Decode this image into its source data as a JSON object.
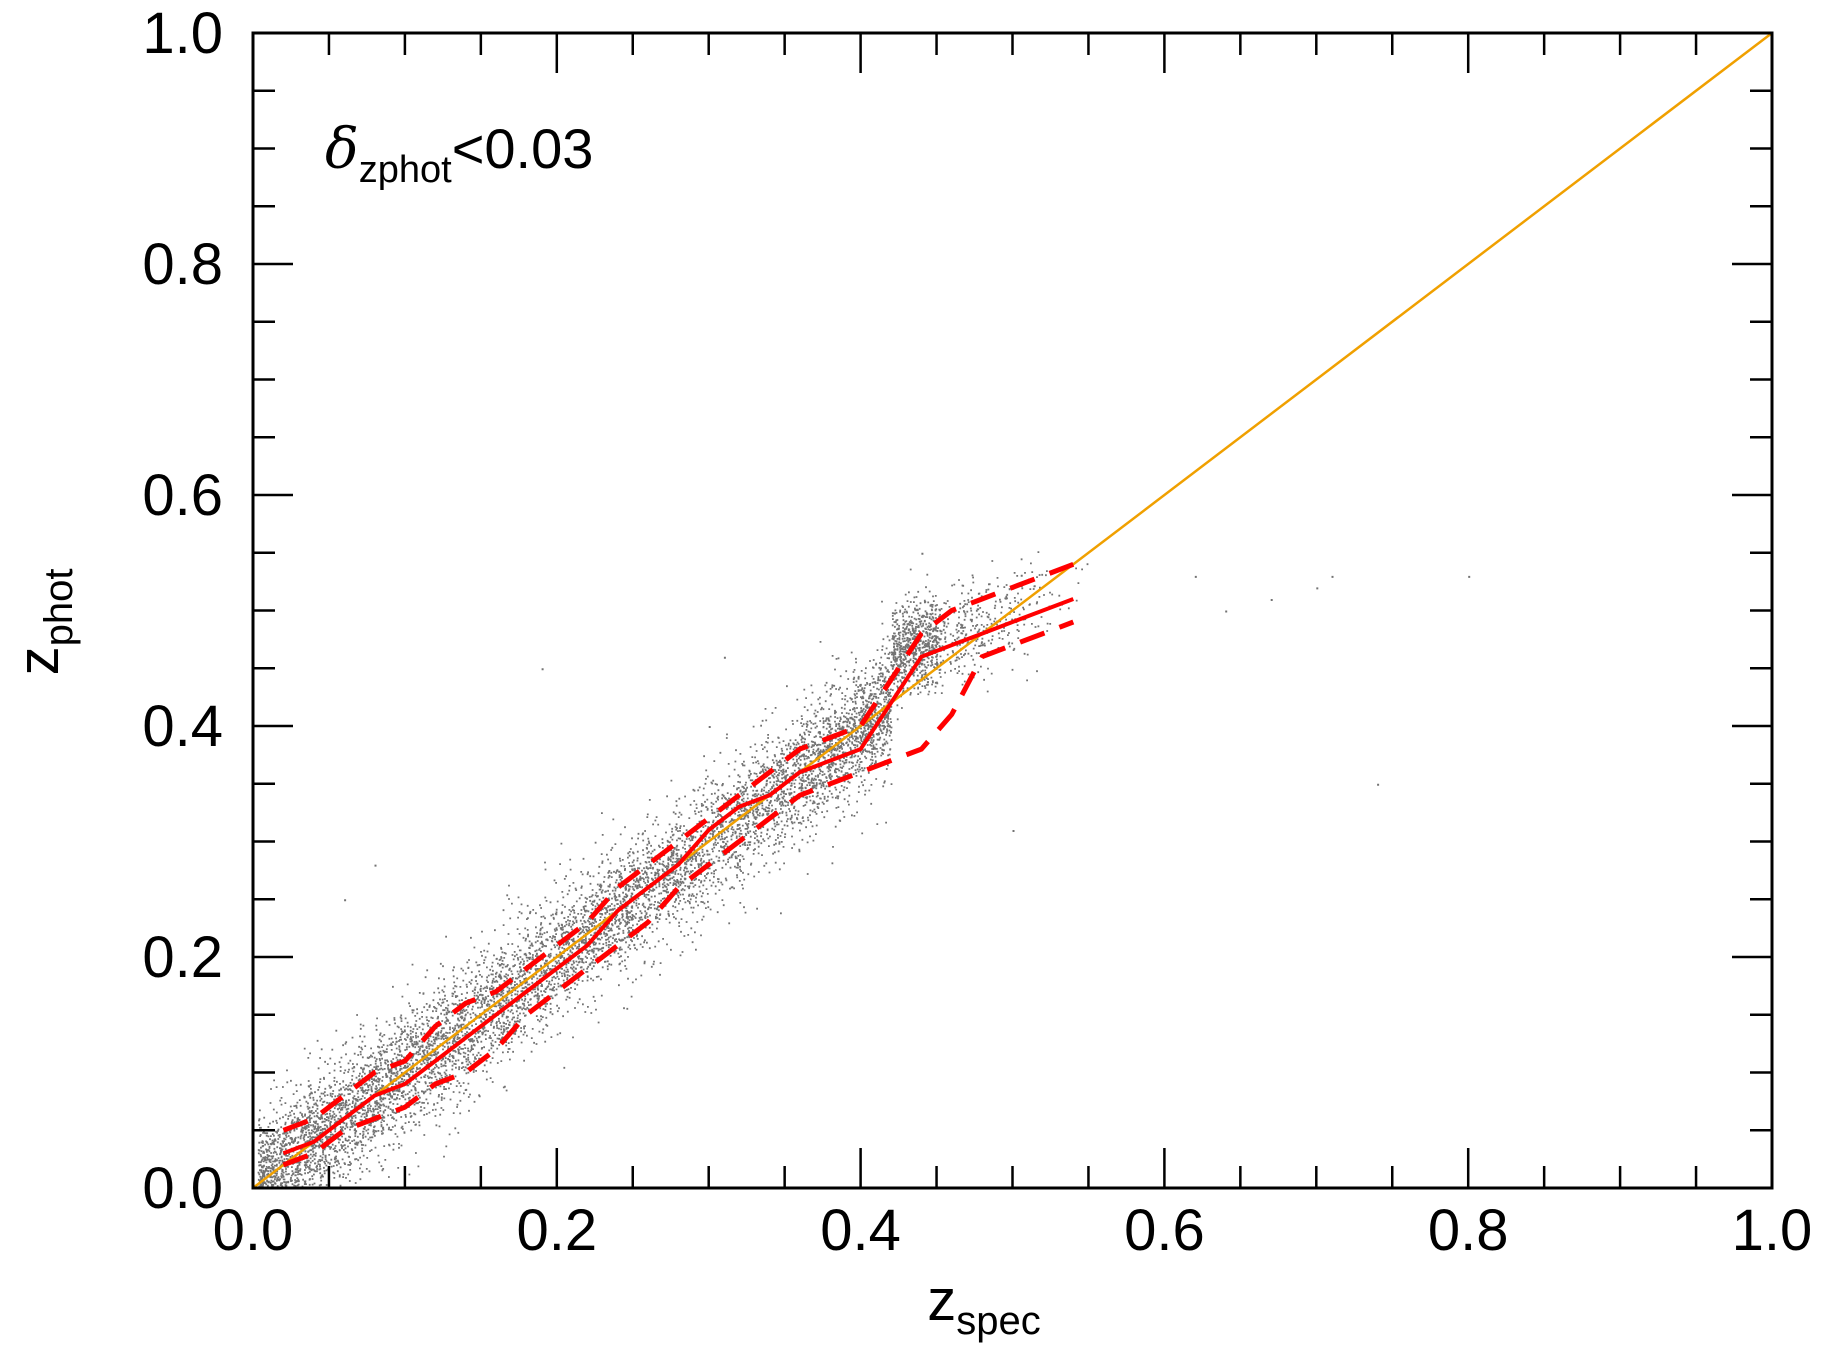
{
  "chart_data": {
    "type": "scatter",
    "xlabel": "z",
    "xlabel_sub": "spec",
    "ylabel": "z",
    "ylabel_sub": "phot",
    "xlim": [
      0.0,
      1.0
    ],
    "ylim": [
      0.0,
      1.0
    ],
    "x_ticks": [
      "0.0",
      "0.2",
      "0.4",
      "0.6",
      "0.8",
      "1.0"
    ],
    "y_ticks": [
      "0.0",
      "0.2",
      "0.4",
      "0.6",
      "0.8",
      "1.0"
    ],
    "annotation": {
      "symbol": "δ",
      "subscript": "zphot",
      "condition": "<0.03"
    },
    "grid": false,
    "colors": {
      "points": "#000000",
      "one_to_one": "#f0a000",
      "median": "#ff0000",
      "scatter_band": "#ff0000"
    },
    "one_to_one_line": {
      "x": [
        0.0,
        1.0
      ],
      "y": [
        0.0,
        1.0
      ]
    },
    "median_line": {
      "x": [
        0.02,
        0.04,
        0.06,
        0.08,
        0.1,
        0.12,
        0.14,
        0.16,
        0.18,
        0.2,
        0.22,
        0.24,
        0.26,
        0.28,
        0.3,
        0.32,
        0.34,
        0.36,
        0.38,
        0.4,
        0.42,
        0.44,
        0.46,
        0.48,
        0.5,
        0.52,
        0.54
      ],
      "y": [
        0.03,
        0.04,
        0.06,
        0.08,
        0.09,
        0.11,
        0.13,
        0.15,
        0.17,
        0.19,
        0.21,
        0.24,
        0.26,
        0.28,
        0.31,
        0.33,
        0.34,
        0.36,
        0.37,
        0.38,
        0.42,
        0.46,
        0.47,
        0.48,
        0.49,
        0.5,
        0.51
      ]
    },
    "upper_band": {
      "x": [
        0.02,
        0.04,
        0.06,
        0.08,
        0.1,
        0.12,
        0.14,
        0.16,
        0.18,
        0.2,
        0.22,
        0.24,
        0.26,
        0.28,
        0.3,
        0.32,
        0.34,
        0.36,
        0.38,
        0.4,
        0.42,
        0.44,
        0.46,
        0.48,
        0.5,
        0.52,
        0.54
      ],
      "y": [
        0.05,
        0.06,
        0.08,
        0.1,
        0.11,
        0.14,
        0.16,
        0.17,
        0.19,
        0.21,
        0.23,
        0.26,
        0.28,
        0.3,
        0.32,
        0.34,
        0.36,
        0.38,
        0.39,
        0.4,
        0.44,
        0.48,
        0.5,
        0.51,
        0.52,
        0.53,
        0.54
      ]
    },
    "lower_band": {
      "x": [
        0.02,
        0.04,
        0.06,
        0.08,
        0.1,
        0.12,
        0.14,
        0.16,
        0.18,
        0.2,
        0.22,
        0.24,
        0.26,
        0.28,
        0.3,
        0.32,
        0.34,
        0.36,
        0.38,
        0.4,
        0.42,
        0.44,
        0.46,
        0.48,
        0.5,
        0.52,
        0.54
      ],
      "y": [
        0.02,
        0.03,
        0.05,
        0.06,
        0.07,
        0.09,
        0.1,
        0.12,
        0.15,
        0.17,
        0.19,
        0.21,
        0.23,
        0.26,
        0.28,
        0.3,
        0.32,
        0.34,
        0.35,
        0.36,
        0.37,
        0.38,
        0.41,
        0.46,
        0.47,
        0.48,
        0.49
      ]
    },
    "scatter_points": {
      "description_of_distribution": "",
      "n_points_rendered": 9000,
      "center_x_range": [
        0.0,
        0.6
      ],
      "scatter_sigma_y": 0.022,
      "outliers": [
        {
          "x": 0.06,
          "y": 0.25
        },
        {
          "x": 0.08,
          "y": 0.28
        },
        {
          "x": 0.19,
          "y": 0.45
        },
        {
          "x": 0.3,
          "y": 0.4
        },
        {
          "x": 0.31,
          "y": 0.46
        },
        {
          "x": 0.44,
          "y": 0.55
        },
        {
          "x": 0.5,
          "y": 0.31
        },
        {
          "x": 0.62,
          "y": 0.53
        },
        {
          "x": 0.64,
          "y": 0.5
        },
        {
          "x": 0.67,
          "y": 0.51
        },
        {
          "x": 0.7,
          "y": 0.52
        },
        {
          "x": 0.71,
          "y": 0.53
        },
        {
          "x": 0.74,
          "y": 0.35
        },
        {
          "x": 0.8,
          "y": 0.53
        }
      ]
    }
  }
}
